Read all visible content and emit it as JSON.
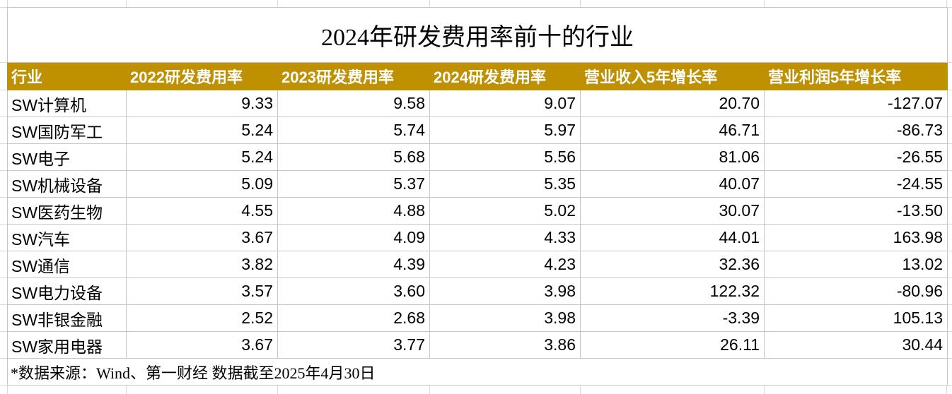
{
  "colors": {
    "header_background": "#BF9000",
    "header_text": "#FFFFFF",
    "cell_border": "#C6C6C6",
    "text": "#000000"
  },
  "source_note": "*数据来源：Wind、第一财经 数据截至2025年4月30日",
  "chart_data": {
    "type": "table",
    "title": "2024年研发费用率前十的行业",
    "columns": [
      "行业",
      "2022研发费用率",
      "2023研发费用率",
      "2024研发费用率",
      "营业收入5年增长率",
      "营业利润5年增长率"
    ],
    "rows": [
      {
        "industry": "SW计算机",
        "values": [
          9.33,
          9.58,
          9.07,
          20.7,
          -127.07
        ]
      },
      {
        "industry": "SW国防军工",
        "values": [
          5.24,
          5.74,
          5.97,
          46.71,
          -86.73
        ]
      },
      {
        "industry": "SW电子",
        "values": [
          5.24,
          5.68,
          5.56,
          81.06,
          -26.55
        ]
      },
      {
        "industry": "SW机械设备",
        "values": [
          5.09,
          5.37,
          5.35,
          40.07,
          -24.55
        ]
      },
      {
        "industry": "SW医药生物",
        "values": [
          4.55,
          4.88,
          5.02,
          30.07,
          -13.5
        ]
      },
      {
        "industry": "SW汽车",
        "values": [
          3.67,
          4.09,
          4.33,
          44.01,
          163.98
        ]
      },
      {
        "industry": "SW通信",
        "values": [
          3.82,
          4.39,
          4.23,
          32.36,
          13.02
        ]
      },
      {
        "industry": "SW电力设备",
        "values": [
          3.57,
          3.6,
          3.98,
          122.32,
          -80.96
        ]
      },
      {
        "industry": "SW非银金融",
        "values": [
          2.52,
          2.68,
          3.98,
          -3.39,
          105.13
        ]
      },
      {
        "industry": "SW家用电器",
        "values": [
          3.67,
          3.77,
          3.86,
          26.11,
          30.44
        ]
      }
    ]
  }
}
